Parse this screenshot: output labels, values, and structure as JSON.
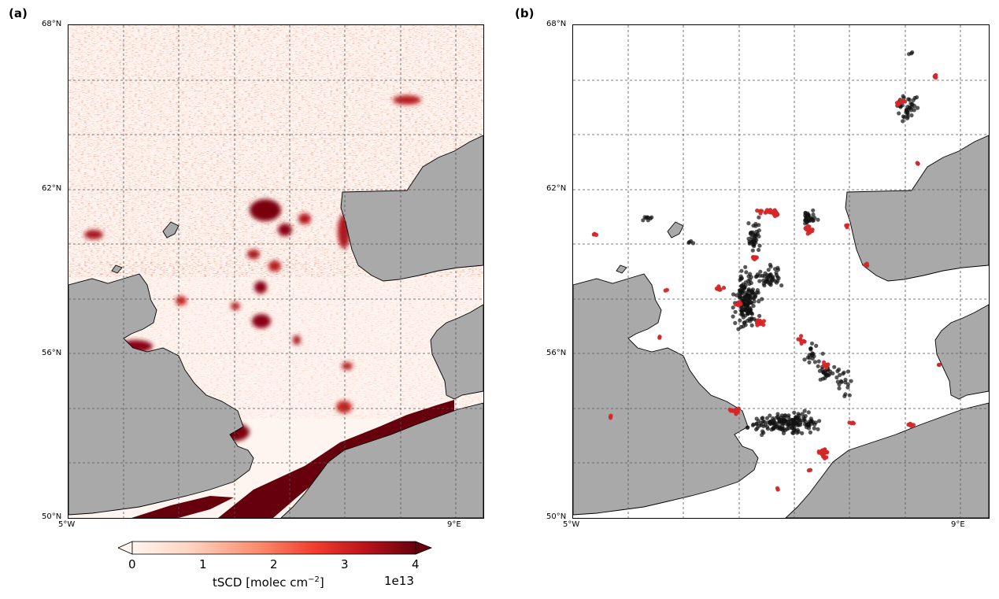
{
  "panels": [
    {
      "label": "(a)",
      "lat_ticks": [
        "68°N",
        "62°N",
        "56°N",
        "50°N"
      ],
      "lon_ticks": [
        "5°W",
        "9°E"
      ],
      "land_color": "#a9a9a9",
      "sea_color": "#fff5f0"
    },
    {
      "label": "(b)",
      "lat_ticks": [
        "68°N",
        "62°N",
        "56°N",
        "50°N"
      ],
      "lon_ticks": [
        "5°W",
        "9°E"
      ],
      "land_color": "#a9a9a9",
      "sea_color": "#ffffff",
      "point_colors": {
        "black": "#111111",
        "red": "#d62728"
      }
    }
  ],
  "colorbar": {
    "ticks": [
      "0",
      "1",
      "2",
      "3",
      "4"
    ],
    "label": "tSCD [molec cm$^{-2}$]",
    "label_display": "tSCD [molec cm",
    "label_sup": "−2",
    "label_end": "]",
    "multiplier": "1e13",
    "colormap": [
      "#fff5f0",
      "#fcbba1",
      "#fc6a4a",
      "#ef3b2c",
      "#cb181d",
      "#67000d"
    ],
    "range": [
      0,
      4
    ]
  }
}
